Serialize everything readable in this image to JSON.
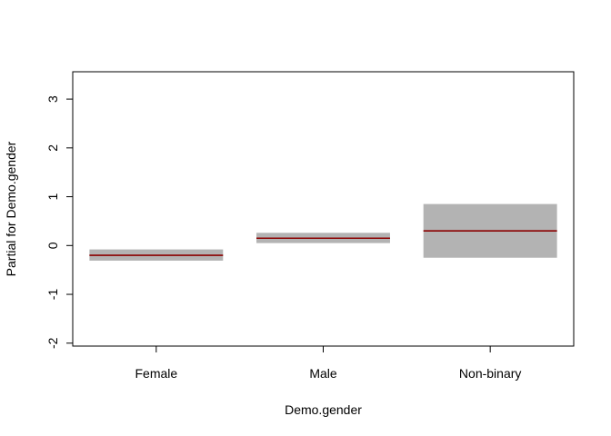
{
  "chart_data": {
    "type": "bar",
    "title": "",
    "xlabel": "Demo.gender",
    "ylabel": "Partial for Demo.gender",
    "categories": [
      "Female",
      "Male",
      "Non-binary"
    ],
    "series": [
      {
        "estimate": [
          -0.2,
          0.15,
          0.3
        ],
        "lower": [
          -0.31,
          0.05,
          -0.25
        ],
        "upper": [
          -0.08,
          0.26,
          0.85
        ]
      }
    ],
    "ylim": [
      -2,
      3.5
    ],
    "yticks": [
      -2,
      -1,
      0,
      1,
      2,
      3
    ],
    "grid": false,
    "legend": "none",
    "colors": {
      "band": "#b3b3b3",
      "estimate": "#8b0000",
      "axis": "#000000"
    }
  }
}
